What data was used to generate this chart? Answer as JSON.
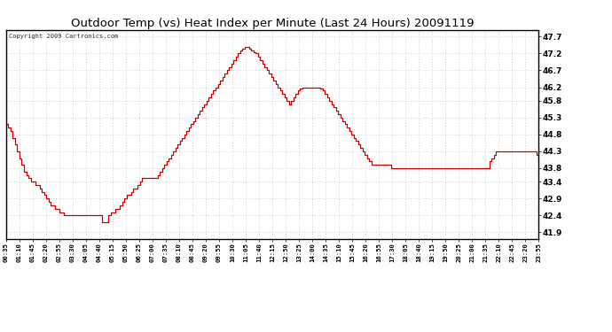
{
  "title": "Outdoor Temp (vs) Heat Index per Minute (Last 24 Hours) 20091119",
  "copyright": "Copyright 2009 Cartronics.com",
  "line_color": "#cc0000",
  "background_color": "#ffffff",
  "grid_color": "#999999",
  "yticks": [
    41.9,
    42.4,
    42.9,
    43.4,
    43.8,
    44.3,
    44.8,
    45.3,
    45.8,
    46.2,
    46.7,
    47.2,
    47.7
  ],
  "ylim": [
    41.7,
    47.9
  ],
  "xtick_labels": [
    "00:35",
    "01:10",
    "01:45",
    "02:20",
    "02:55",
    "03:30",
    "04:05",
    "04:40",
    "05:15",
    "05:50",
    "06:25",
    "07:00",
    "07:35",
    "08:10",
    "08:45",
    "09:20",
    "09:55",
    "10:30",
    "11:05",
    "11:40",
    "12:15",
    "12:50",
    "13:25",
    "14:00",
    "14:35",
    "15:10",
    "15:45",
    "16:20",
    "16:55",
    "17:30",
    "18:05",
    "18:40",
    "19:15",
    "19:50",
    "20:25",
    "21:00",
    "21:35",
    "22:10",
    "22:45",
    "23:20",
    "23:55"
  ],
  "data_y": [
    45.1,
    45.0,
    44.9,
    44.7,
    44.5,
    44.3,
    44.1,
    43.9,
    43.7,
    43.6,
    43.5,
    43.4,
    43.4,
    43.3,
    43.3,
    43.2,
    43.1,
    43.0,
    42.9,
    42.8,
    42.7,
    42.7,
    42.6,
    42.6,
    42.5,
    42.5,
    42.4,
    42.4,
    42.4,
    42.4,
    42.4,
    42.4,
    42.4,
    42.4,
    42.4,
    42.4,
    42.4,
    42.4,
    42.4,
    42.4,
    42.4,
    42.4,
    42.4,
    42.2,
    42.2,
    42.2,
    42.4,
    42.5,
    42.5,
    42.6,
    42.6,
    42.7,
    42.8,
    42.9,
    43.0,
    43.0,
    43.1,
    43.2,
    43.2,
    43.3,
    43.4,
    43.5,
    43.5,
    43.5,
    43.5,
    43.5,
    43.5,
    43.5,
    43.6,
    43.7,
    43.8,
    43.9,
    44.0,
    44.1,
    44.2,
    44.3,
    44.4,
    44.5,
    44.6,
    44.7,
    44.8,
    44.9,
    45.0,
    45.1,
    45.2,
    45.3,
    45.4,
    45.5,
    45.6,
    45.7,
    45.8,
    45.9,
    46.0,
    46.1,
    46.2,
    46.3,
    46.4,
    46.5,
    46.6,
    46.7,
    46.8,
    46.9,
    47.0,
    47.1,
    47.2,
    47.3,
    47.35,
    47.4,
    47.4,
    47.35,
    47.3,
    47.25,
    47.2,
    47.1,
    47.0,
    46.9,
    46.8,
    46.7,
    46.6,
    46.5,
    46.4,
    46.3,
    46.2,
    46.1,
    46.0,
    45.9,
    45.8,
    45.7,
    45.8,
    45.9,
    46.0,
    46.1,
    46.15,
    46.2,
    46.2,
    46.2,
    46.2,
    46.2,
    46.2,
    46.2,
    46.2,
    46.15,
    46.1,
    46.0,
    45.9,
    45.8,
    45.7,
    45.6,
    45.5,
    45.4,
    45.3,
    45.2,
    45.1,
    45.0,
    44.9,
    44.8,
    44.7,
    44.6,
    44.5,
    44.4,
    44.3,
    44.2,
    44.1,
    44.0,
    43.9,
    43.9,
    43.9,
    43.9,
    43.9,
    43.9,
    43.9,
    43.9,
    43.9,
    43.8,
    43.8,
    43.8,
    43.8,
    43.8,
    43.8,
    43.8,
    43.8,
    43.8,
    43.8,
    43.8,
    43.8,
    43.8,
    43.8,
    43.8,
    43.8,
    43.8,
    43.8,
    43.8,
    43.8,
    43.8,
    43.8,
    43.8,
    43.8,
    43.8,
    43.8,
    43.8,
    43.8,
    43.8,
    43.8,
    43.8,
    43.8,
    43.8,
    43.8,
    43.8,
    43.8,
    43.8,
    43.8,
    43.8,
    43.8,
    43.8,
    43.8,
    43.8,
    43.8,
    44.0,
    44.1,
    44.2,
    44.3,
    44.3,
    44.3,
    44.3,
    44.3,
    44.3,
    44.3,
    44.3,
    44.3,
    44.3,
    44.3,
    44.3,
    44.3,
    44.3,
    44.3,
    44.3,
    44.3,
    44.3,
    44.2,
    44.1
  ]
}
